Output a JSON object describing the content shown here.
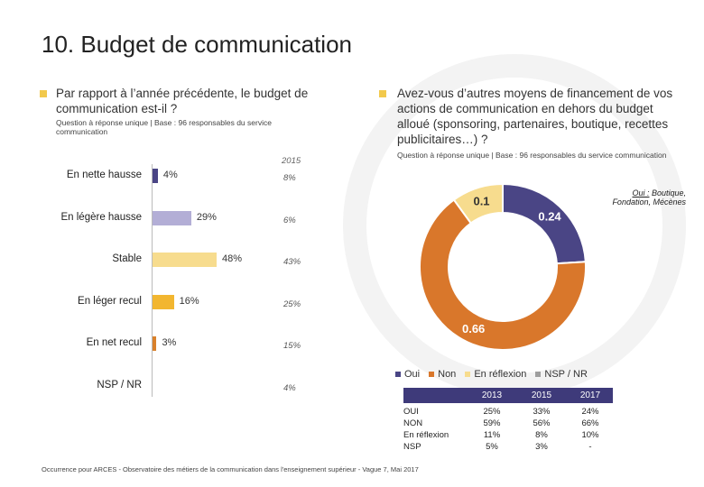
{
  "page": {
    "title": "10. Budget de communication",
    "footer": "Occurrence pour ARCES - Observatoire des métiers de la communication dans l'enseignement supérieur - Vague 7, Mai 2017"
  },
  "left_panel": {
    "question": "Par rapport à l’année précédente, le budget de communication est-il ?",
    "subtitle": "Question à réponse unique | Base : 96 responsables du service communication"
  },
  "right_panel": {
    "question": "Avez-vous d’autres moyens de financement de vos actions de communication en dehors du budget alloué (sponsoring, partenaires, boutique, recettes publicitaires…) ?",
    "subtitle": "Question à réponse unique | Base : 96 responsables du service communication",
    "callout_prefix": "Oui :",
    "callout_rest": " Boutique,",
    "callout_line2": "Fondation, Mécènes"
  },
  "chart_data": [
    {
      "type": "bar",
      "orientation": "horizontal",
      "title": "",
      "categories": [
        "En nette hausse",
        "En légère hausse",
        "Stable",
        "En léger recul",
        "En net recul",
        "NSP / NR"
      ],
      "values": [
        4,
        29,
        48,
        16,
        3,
        null
      ],
      "value_labels": [
        "4%",
        "29%",
        "48%",
        "16%",
        "3%",
        ""
      ],
      "colors": [
        "#4a4585",
        "#b3aed6",
        "#f7dc8e",
        "#f2b630",
        "#d9812b",
        "#cccccc"
      ],
      "comparison": {
        "year": "2015",
        "values": [
          8,
          6,
          43,
          25,
          15,
          4
        ],
        "labels": [
          "8%",
          "6%",
          "43%",
          "25%",
          "15%",
          "4%"
        ]
      },
      "xlim": [
        0,
        100
      ]
    },
    {
      "type": "pie",
      "donut": true,
      "categories": [
        "Oui",
        "Non",
        "En réflexion",
        "NSP / NR"
      ],
      "values": [
        0.24,
        0.66,
        0.1,
        0
      ],
      "value_labels": [
        "0.24",
        "0.66",
        "0.1",
        ""
      ],
      "colors": [
        "#4a4585",
        "#d9772b",
        "#f7dc8e",
        "#9e9e9e"
      ]
    },
    {
      "type": "table",
      "columns": [
        "2013",
        "2015",
        "2017"
      ],
      "rows": [
        {
          "label": "OUI",
          "values": [
            "25%",
            "33%",
            "24%"
          ]
        },
        {
          "label": "NON",
          "values": [
            "59%",
            "56%",
            "66%"
          ]
        },
        {
          "label": "En réflexion",
          "values": [
            "11%",
            "8%",
            "10%"
          ]
        },
        {
          "label": "NSP",
          "values": [
            "5%",
            "3%",
            "-"
          ]
        }
      ]
    }
  ]
}
